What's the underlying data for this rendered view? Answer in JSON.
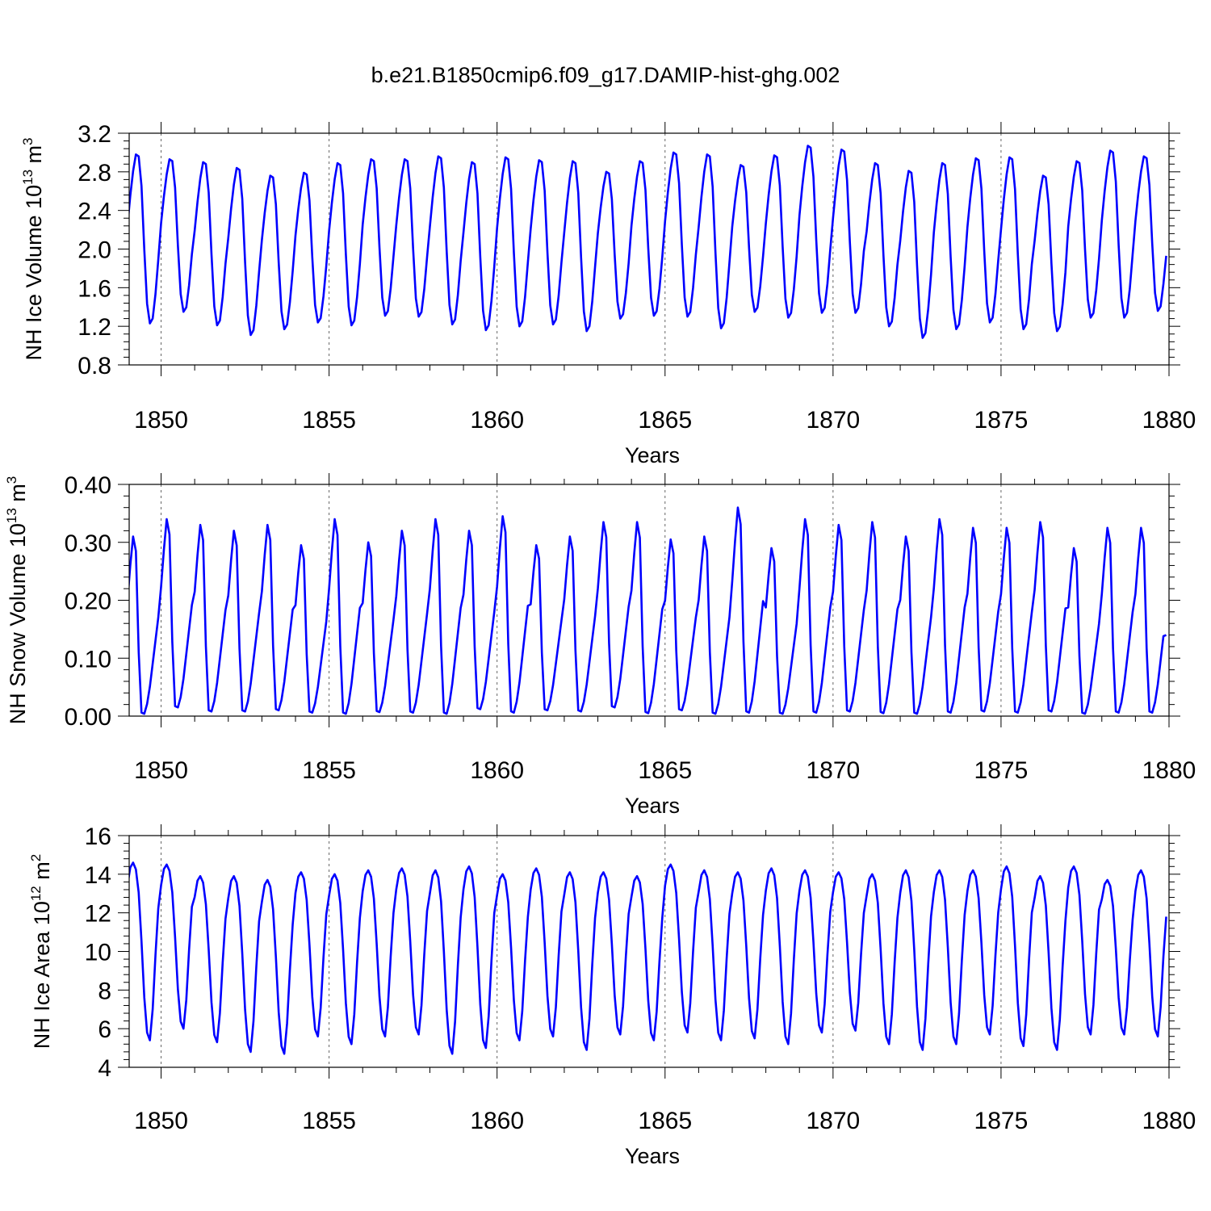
{
  "title": "b.e21.B1850cmip6.f09_g17.DAMIP-hist-ghg.002",
  "colors": {
    "series": "#0000ff",
    "axes": "#000000",
    "grid": "#666666"
  },
  "chart_data": [
    {
      "type": "line",
      "id": "ice-volume",
      "ylabel_text": "NH Ice Volume 10",
      "ylabel_exp": "13",
      "ylabel_unit": "m",
      "ylabel_unit_exp": "3",
      "xlabel": "Years",
      "xlim": [
        1849.05,
        1880.0
      ],
      "ylim": [
        0.8,
        3.2
      ],
      "yticks": [
        0.8,
        1.2,
        1.6,
        2.0,
        2.4,
        2.8,
        3.2
      ],
      "ytick_labels": [
        "0.8",
        "1.2",
        "1.6",
        "2.0",
        "2.4",
        "2.8",
        "3.2"
      ],
      "xticks": [
        1850,
        1855,
        1860,
        1865,
        1870,
        1875,
        1880
      ],
      "xtick_labels": [
        "1850",
        "1855",
        "1860",
        "1865",
        "1870",
        "1875",
        "1880"
      ],
      "start": 1849.0,
      "n_months": 372,
      "seasonal": [
        2.25,
        2.55,
        2.8,
        2.97,
        2.95,
        2.65,
        2.0,
        1.45,
        1.25,
        1.3,
        1.55,
        1.9
      ],
      "series": [
        {
          "name": "NH Ice Volume",
          "maxes": [
            2.98,
            2.93,
            2.9,
            2.84,
            2.76,
            2.79,
            2.89,
            2.93,
            2.93,
            2.96,
            2.9,
            2.95,
            2.92,
            2.91,
            2.8,
            2.91,
            3.0,
            2.98,
            2.87,
            2.97,
            3.07,
            3.03,
            2.89,
            2.81,
            2.89,
            2.94,
            2.95,
            2.76,
            2.91,
            3.02,
            2.96
          ],
          "mins": [
            1.23,
            1.35,
            1.21,
            1.11,
            1.17,
            1.24,
            1.21,
            1.31,
            1.3,
            1.22,
            1.16,
            1.2,
            1.22,
            1.15,
            1.28,
            1.31,
            1.3,
            1.18,
            1.35,
            1.29,
            1.34,
            1.34,
            1.2,
            1.08,
            1.17,
            1.24,
            1.17,
            1.15,
            1.29,
            1.29,
            1.36
          ],
          "end": 1.93
        }
      ]
    },
    {
      "type": "line",
      "id": "snow-volume",
      "ylabel_text": "NH Snow Volume 10",
      "ylabel_exp": "13",
      "ylabel_unit": "m",
      "ylabel_unit_exp": "3",
      "xlabel": "Years",
      "xlim": [
        1849.05,
        1880.0
      ],
      "ylim": [
        0.0,
        0.4
      ],
      "yticks": [
        0.0,
        0.1,
        0.2,
        0.3,
        0.4
      ],
      "ytick_labels": [
        "0.00",
        "0.10",
        "0.20",
        "0.30",
        "0.40"
      ],
      "xticks": [
        1850,
        1855,
        1860,
        1865,
        1870,
        1875,
        1880
      ],
      "xtick_labels": [
        "1850",
        "1855",
        "1860",
        "1865",
        "1870",
        "1875",
        "1880"
      ],
      "start": 1849.0,
      "n_months": 372,
      "seasonal": [
        0.2,
        0.26,
        0.31,
        0.285,
        0.11,
        0.005,
        0.003,
        0.02,
        0.05,
        0.09,
        0.13,
        0.17
      ],
      "series": [
        {
          "name": "NH Snow Volume",
          "maxes": [
            0.31,
            0.34,
            0.33,
            0.32,
            0.33,
            0.295,
            0.34,
            0.3,
            0.32,
            0.34,
            0.32,
            0.345,
            0.295,
            0.31,
            0.335,
            0.335,
            0.305,
            0.31,
            0.36,
            0.29,
            0.34,
            0.33,
            0.335,
            0.31,
            0.34,
            0.325,
            0.325,
            0.335,
            0.29,
            0.325,
            0.325
          ],
          "mins": [
            0.004,
            0.015,
            0.008,
            0.008,
            0.01,
            0.006,
            0.004,
            0.007,
            0.006,
            0.004,
            0.012,
            0.006,
            0.01,
            0.008,
            0.015,
            0.005,
            0.01,
            0.004,
            0.006,
            0.004,
            0.006,
            0.008,
            0.005,
            0.004,
            0.006,
            0.008,
            0.006,
            0.008,
            0.004,
            0.006,
            0.006
          ],
          "end": 0.14
        }
      ]
    },
    {
      "type": "line",
      "id": "ice-area",
      "ylabel_text": "NH Ice Area 10",
      "ylabel_exp": "12",
      "ylabel_unit": "m",
      "ylabel_unit_exp": "2",
      "xlabel": "Years",
      "xlim": [
        1849.05,
        1880.0
      ],
      "ylim": [
        4,
        16
      ],
      "yticks": [
        4,
        6,
        8,
        10,
        12,
        14,
        16
      ],
      "ytick_labels": [
        "4",
        "6",
        "8",
        "10",
        "12",
        "14",
        "16"
      ],
      "xticks": [
        1850,
        1855,
        1860,
        1865,
        1870,
        1875,
        1880
      ],
      "xtick_labels": [
        "1850",
        "1855",
        "1860",
        "1865",
        "1870",
        "1875",
        "1880"
      ],
      "start": 1849.0,
      "n_months": 372,
      "seasonal": [
        13.4,
        14.3,
        14.55,
        14.2,
        13.0,
        10.5,
        7.6,
        5.8,
        5.4,
        7.0,
        9.8,
        12.2
      ],
      "series": [
        {
          "name": "NH Ice Area",
          "maxes": [
            14.6,
            14.5,
            13.9,
            13.9,
            13.7,
            14.1,
            14.0,
            14.2,
            14.3,
            14.2,
            14.4,
            14.0,
            14.3,
            14.1,
            14.1,
            13.9,
            14.5,
            14.2,
            14.1,
            14.3,
            14.2,
            14.1,
            14.0,
            14.2,
            14.2,
            14.2,
            14.4,
            13.9,
            14.4,
            13.7,
            14.2
          ],
          "mins": [
            5.4,
            6.0,
            5.3,
            4.8,
            4.7,
            5.6,
            5.2,
            5.6,
            5.7,
            4.7,
            5.0,
            5.4,
            5.6,
            4.9,
            5.7,
            5.4,
            5.8,
            5.4,
            5.5,
            5.2,
            5.8,
            5.9,
            5.2,
            4.9,
            5.2,
            5.7,
            5.1,
            4.9,
            5.7,
            5.7,
            5.6
          ],
          "end": 11.8
        }
      ]
    }
  ]
}
